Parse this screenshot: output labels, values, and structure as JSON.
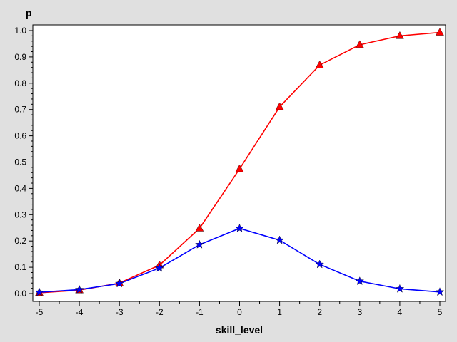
{
  "chart_data": {
    "type": "line",
    "title": "",
    "xlabel": "skill_level",
    "ylabel": "p",
    "xlim": [
      -5,
      5
    ],
    "ylim": [
      0,
      1.0
    ],
    "x": [
      -5,
      -4,
      -3,
      -2,
      -1,
      0,
      1,
      2,
      3,
      4,
      5
    ],
    "x_ticks": [
      "-5",
      "-4",
      "-3",
      "-2",
      "-1",
      "0",
      "1",
      "2",
      "3",
      "4",
      "5"
    ],
    "y_ticks": [
      "0.0",
      "0.1",
      "0.2",
      "0.3",
      "0.4",
      "0.5",
      "0.6",
      "0.7",
      "0.8",
      "0.9",
      "1.0"
    ],
    "grid": false,
    "legend": "none",
    "series": [
      {
        "color": "#ff0000",
        "marker": "triangle",
        "values": [
          0.003,
          0.013,
          0.04,
          0.108,
          0.248,
          0.474,
          0.71,
          0.869,
          0.946,
          0.98,
          0.993
        ]
      },
      {
        "color": "#0000ff",
        "marker": "star",
        "values": [
          0.005,
          0.015,
          0.038,
          0.097,
          0.186,
          0.248,
          0.203,
          0.111,
          0.047,
          0.018,
          0.006
        ]
      }
    ]
  }
}
